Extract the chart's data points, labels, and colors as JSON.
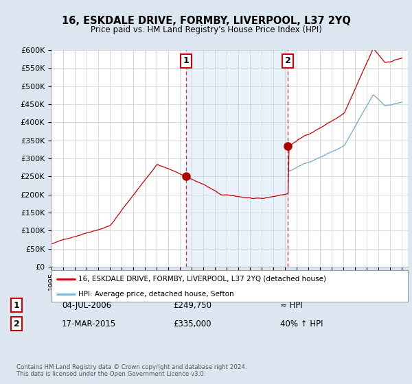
{
  "title": "16, ESKDALE DRIVE, FORMBY, LIVERPOOL, L37 2YQ",
  "subtitle": "Price paid vs. HM Land Registry's House Price Index (HPI)",
  "ylim": [
    0,
    600000
  ],
  "yticks": [
    0,
    50000,
    100000,
    150000,
    200000,
    250000,
    300000,
    350000,
    400000,
    450000,
    500000,
    550000,
    600000
  ],
  "sale1_date": "04-JUL-2006",
  "sale1_price": 249750,
  "sale1_x": 2006.5,
  "sale2_date": "17-MAR-2015",
  "sale2_price": 335000,
  "sale2_x": 2015.21,
  "sale2_hpi_note": "40% ↑ HPI",
  "sale1_hpi_note": "≈ HPI",
  "legend_line1": "16, ESKDALE DRIVE, FORMBY, LIVERPOOL, L37 2YQ (detached house)",
  "legend_line2": "HPI: Average price, detached house, Sefton",
  "footer": "Contains HM Land Registry data © Crown copyright and database right 2024.\nThis data is licensed under the Open Government Licence v3.0.",
  "red_color": "#cc0000",
  "blue_color": "#7bafd4",
  "shade_color": "#ddeeff",
  "background_color": "#dce6f1",
  "plot_bg_color": "#ffffff",
  "vline_color": "#cc0000",
  "marker_color": "#aa0000",
  "xlim_left": 1995.0,
  "xlim_right": 2025.5
}
